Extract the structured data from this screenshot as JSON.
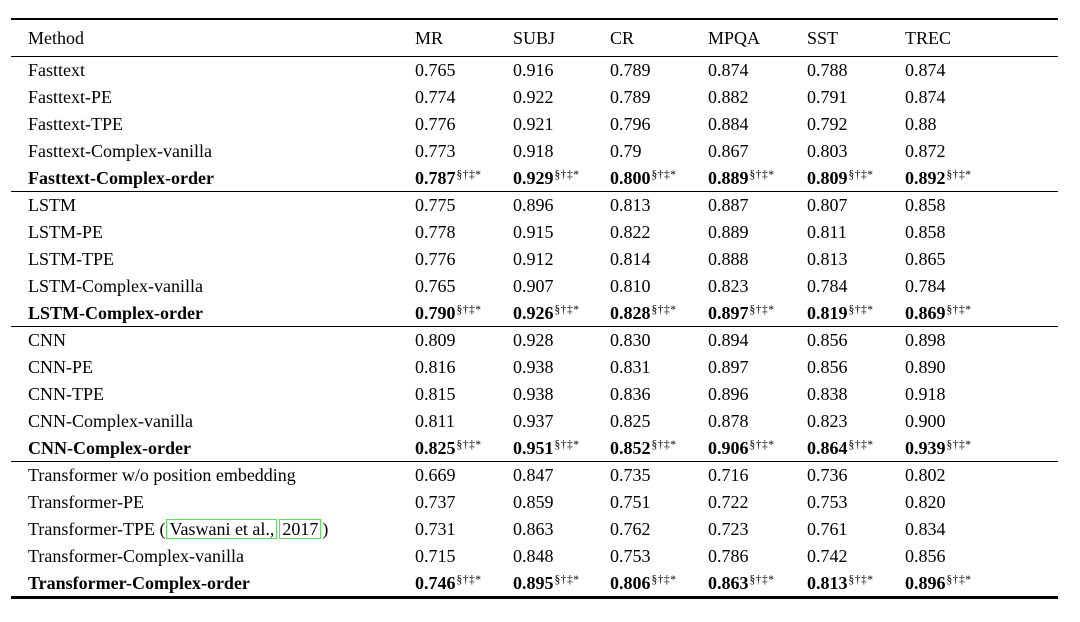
{
  "table": {
    "columns": [
      "Method",
      "MR",
      "SUBJ",
      "CR",
      "MPQA",
      "SST",
      "TREC"
    ],
    "sup_marks": "§†‡*",
    "citation_border_color": "#5ede5e",
    "text_color": "#000000",
    "groups": [
      {
        "rows": [
          {
            "method": [
              {
                "t": "Fasttext"
              }
            ],
            "bold": false,
            "sup": false,
            "values": [
              "0.765",
              "0.916",
              "0.789",
              "0.874",
              "0.788",
              "0.874"
            ]
          },
          {
            "method": [
              {
                "t": "Fasttext-PE"
              }
            ],
            "bold": false,
            "sup": false,
            "values": [
              "0.774",
              "0.922",
              "0.789",
              "0.882",
              "0.791",
              "0.874"
            ]
          },
          {
            "method": [
              {
                "t": "Fasttext-TPE"
              }
            ],
            "bold": false,
            "sup": false,
            "values": [
              "0.776",
              "0.921",
              "0.796",
              "0.884",
              "0.792",
              "0.88"
            ]
          },
          {
            "method": [
              {
                "t": "Fasttext-Complex-vanilla"
              }
            ],
            "bold": false,
            "sup": false,
            "values": [
              "0.773",
              "0.918",
              "0.79",
              "0.867",
              "0.803",
              "0.872"
            ]
          },
          {
            "method": [
              {
                "t": "Fasttext-Complex-order"
              }
            ],
            "bold": true,
            "sup": true,
            "values": [
              "0.787",
              "0.929",
              "0.800",
              "0.889",
              "0.809",
              "0.892"
            ]
          }
        ]
      },
      {
        "rows": [
          {
            "method": [
              {
                "t": "LSTM"
              }
            ],
            "bold": false,
            "sup": false,
            "values": [
              "0.775",
              "0.896",
              "0.813",
              "0.887",
              "0.807",
              "0.858"
            ]
          },
          {
            "method": [
              {
                "t": "LSTM-PE"
              }
            ],
            "bold": false,
            "sup": false,
            "values": [
              "0.778",
              "0.915",
              "0.822",
              "0.889",
              "0.811",
              "0.858"
            ]
          },
          {
            "method": [
              {
                "t": "LSTM-TPE"
              }
            ],
            "bold": false,
            "sup": false,
            "values": [
              "0.776",
              "0.912",
              "0.814",
              "0.888",
              "0.813",
              "0.865"
            ]
          },
          {
            "method": [
              {
                "t": "LSTM-Complex-vanilla"
              }
            ],
            "bold": false,
            "sup": false,
            "values": [
              "0.765",
              "0.907",
              "0.810",
              "0.823",
              "0.784",
              "0.784"
            ]
          },
          {
            "method": [
              {
                "t": "LSTM-Complex-order"
              }
            ],
            "bold": true,
            "sup": true,
            "values": [
              "0.790",
              "0.926",
              "0.828",
              "0.897",
              "0.819",
              "0.869"
            ]
          }
        ]
      },
      {
        "rows": [
          {
            "method": [
              {
                "t": "CNN"
              }
            ],
            "bold": false,
            "sup": false,
            "values": [
              "0.809",
              "0.928",
              "0.830",
              "0.894",
              "0.856",
              "0.898"
            ]
          },
          {
            "method": [
              {
                "t": "CNN-PE"
              }
            ],
            "bold": false,
            "sup": false,
            "values": [
              "0.816",
              "0.938",
              "0.831",
              "0.897",
              "0.856",
              "0.890"
            ]
          },
          {
            "method": [
              {
                "t": "CNN-TPE"
              }
            ],
            "bold": false,
            "sup": false,
            "values": [
              "0.815",
              "0.938",
              "0.836",
              "0.896",
              "0.838",
              "0.918"
            ]
          },
          {
            "method": [
              {
                "t": "CNN-Complex-vanilla"
              }
            ],
            "bold": false,
            "sup": false,
            "values": [
              "0.811",
              "0.937",
              "0.825",
              "0.878",
              "0.823",
              "0.900"
            ]
          },
          {
            "method": [
              {
                "t": "CNN-Complex-order"
              }
            ],
            "bold": true,
            "sup": true,
            "values": [
              "0.825",
              "0.951",
              "0.852",
              "0.906",
              "0.864",
              "0.939"
            ]
          }
        ]
      },
      {
        "rows": [
          {
            "method": [
              {
                "t": "Transformer w/o position embedding"
              }
            ],
            "bold": false,
            "sup": false,
            "values": [
              "0.669",
              "0.847",
              "0.735",
              "0.716",
              "0.736",
              "0.802"
            ]
          },
          {
            "method": [
              {
                "t": "Transformer-PE"
              }
            ],
            "bold": false,
            "sup": false,
            "values": [
              "0.737",
              "0.859",
              "0.751",
              "0.722",
              "0.753",
              "0.820"
            ]
          },
          {
            "method": [
              {
                "t": "Transformer-TPE ("
              },
              {
                "t": "Vaswani et al.,",
                "boxed": true
              },
              {
                "t": "2017",
                "boxed": true
              },
              {
                "t": ")"
              }
            ],
            "bold": false,
            "sup": false,
            "values": [
              "0.731",
              "0.863",
              "0.762",
              "0.723",
              "0.761",
              "0.834"
            ]
          },
          {
            "method": [
              {
                "t": "Transformer-Complex-vanilla"
              }
            ],
            "bold": false,
            "sup": false,
            "values": [
              "0.715",
              "0.848",
              "0.753",
              "0.786",
              "0.742",
              "0.856"
            ]
          },
          {
            "method": [
              {
                "t": "Transformer-Complex-order"
              }
            ],
            "bold": true,
            "sup": true,
            "values": [
              "0.746",
              "0.895",
              "0.806",
              "0.863",
              "0.813",
              "0.896"
            ]
          }
        ]
      }
    ]
  }
}
